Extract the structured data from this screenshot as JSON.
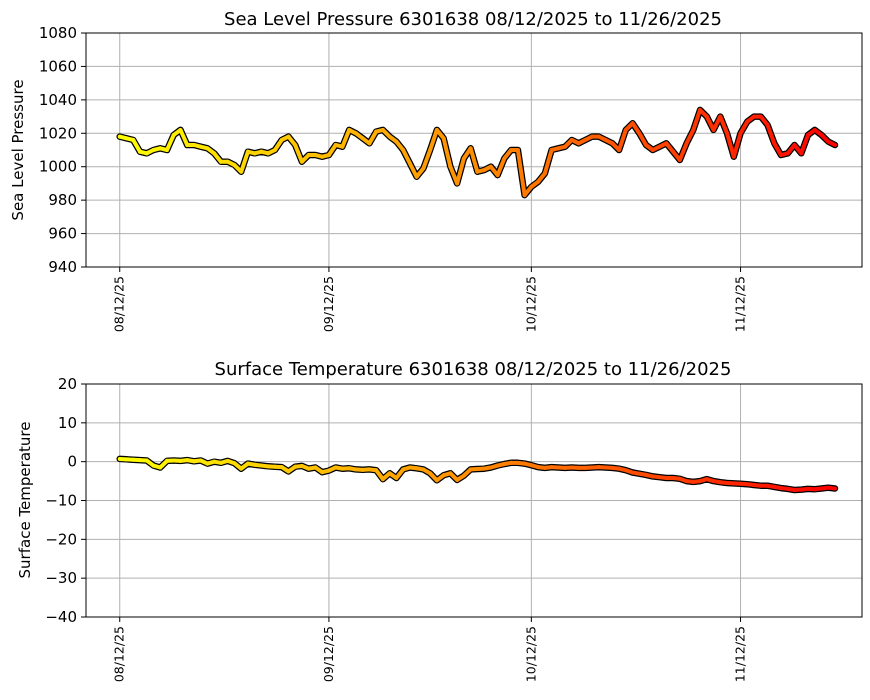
{
  "chart_data": [
    {
      "type": "line",
      "title": "Sea Level Pressure 6301638  08/12/2025 to 11/26/2025",
      "xlabel": "",
      "ylabel": "Sea Level Pressure",
      "ylim": [
        940,
        1080
      ],
      "yticks": [
        940,
        960,
        980,
        1000,
        1020,
        1040,
        1060,
        1080
      ],
      "xlim": [
        "2025-08-07",
        "2025-11-30"
      ],
      "xticks": [
        {
          "date": "2025-08-12",
          "label": "08/12/25"
        },
        {
          "date": "2025-09-12",
          "label": "09/12/25"
        },
        {
          "date": "2025-10-12",
          "label": "10/12/25"
        },
        {
          "date": "2025-11-12",
          "label": "11/12/25"
        }
      ],
      "grid": true,
      "color_scale": [
        "#ffff00",
        "#ff8c00",
        "#ff0000"
      ],
      "edge_color": "#000000",
      "series": [
        {
          "x": [
            "2025-08-12",
            "2025-08-13",
            "2025-08-14",
            "2025-08-15",
            "2025-08-16",
            "2025-08-17",
            "2025-08-18",
            "2025-08-19",
            "2025-08-20",
            "2025-08-21",
            "2025-08-22",
            "2025-08-23",
            "2025-08-24",
            "2025-08-25",
            "2025-08-26",
            "2025-08-27",
            "2025-08-28",
            "2025-08-29",
            "2025-08-30",
            "2025-08-31",
            "2025-09-01",
            "2025-09-02",
            "2025-09-03",
            "2025-09-04",
            "2025-09-05",
            "2025-09-06",
            "2025-09-07",
            "2025-09-08",
            "2025-09-09",
            "2025-09-10",
            "2025-09-11",
            "2025-09-12",
            "2025-09-13",
            "2025-09-14",
            "2025-09-15",
            "2025-09-16",
            "2025-09-17",
            "2025-09-18",
            "2025-09-19",
            "2025-09-20",
            "2025-09-21",
            "2025-09-22",
            "2025-09-23",
            "2025-09-24",
            "2025-09-25",
            "2025-09-26",
            "2025-09-27",
            "2025-09-28",
            "2025-09-29",
            "2025-09-30",
            "2025-10-01",
            "2025-10-02",
            "2025-10-03",
            "2025-10-04",
            "2025-10-05",
            "2025-10-06",
            "2025-10-07",
            "2025-10-08",
            "2025-10-09",
            "2025-10-10",
            "2025-10-11",
            "2025-10-12",
            "2025-10-13",
            "2025-10-14",
            "2025-10-15",
            "2025-10-16",
            "2025-10-17",
            "2025-10-18",
            "2025-10-19",
            "2025-10-20",
            "2025-10-21",
            "2025-10-22",
            "2025-10-23",
            "2025-10-24",
            "2025-10-25",
            "2025-10-26",
            "2025-10-27",
            "2025-10-28",
            "2025-10-29",
            "2025-10-30",
            "2025-10-31",
            "2025-11-01",
            "2025-11-02",
            "2025-11-03",
            "2025-11-04",
            "2025-11-05",
            "2025-11-06",
            "2025-11-07",
            "2025-11-08",
            "2025-11-09",
            "2025-11-10",
            "2025-11-11",
            "2025-11-12",
            "2025-11-13",
            "2025-11-14",
            "2025-11-15",
            "2025-11-16",
            "2025-11-17",
            "2025-11-18",
            "2025-11-19",
            "2025-11-20",
            "2025-11-21",
            "2025-11-22",
            "2025-11-23",
            "2025-11-24",
            "2025-11-25",
            "2025-11-26"
          ],
          "y": [
            1018,
            1017,
            1016,
            1009,
            1008,
            1010,
            1011,
            1010,
            1019,
            1022,
            1013,
            1013,
            1012,
            1011,
            1008,
            1003,
            1003,
            1001,
            997,
            1009,
            1008,
            1009,
            1008,
            1010,
            1016,
            1018,
            1013,
            1003,
            1007,
            1007,
            1006,
            1007,
            1013,
            1012,
            1022,
            1020,
            1017,
            1014,
            1021,
            1022,
            1018,
            1015,
            1010,
            1002,
            994,
            999,
            1010,
            1022,
            1017,
            1000,
            990,
            1005,
            1011,
            997,
            998,
            1000,
            995,
            1005,
            1010,
            1010,
            983,
            988,
            991,
            996,
            1010,
            1011,
            1012,
            1016,
            1014,
            1016,
            1018,
            1018,
            1016,
            1014,
            1010,
            1022,
            1026,
            1020,
            1013,
            1010,
            1012,
            1014,
            1009,
            1004,
            1014,
            1022,
            1034,
            1030,
            1022,
            1030,
            1020,
            1006,
            1020,
            1027,
            1030,
            1030,
            1025,
            1014,
            1007,
            1008,
            1013,
            1008,
            1019,
            1022,
            1019,
            1015,
            1013
          ]
        }
      ]
    },
    {
      "type": "line",
      "title": "Surface Temperature 6301638  08/12/2025 to 11/26/2025",
      "xlabel": "",
      "ylabel": "Surface Temperature",
      "ylim": [
        -40,
        20
      ],
      "yticks": [
        -40,
        -30,
        -20,
        -10,
        0,
        10,
        20
      ],
      "xlim": [
        "2025-08-07",
        "2025-11-30"
      ],
      "xticks": [
        {
          "date": "2025-08-12",
          "label": "08/12/25"
        },
        {
          "date": "2025-09-12",
          "label": "09/12/25"
        },
        {
          "date": "2025-10-12",
          "label": "10/12/25"
        },
        {
          "date": "2025-11-12",
          "label": "11/12/25"
        }
      ],
      "grid": true,
      "color_scale": [
        "#ffff00",
        "#ff8c00",
        "#ff0000"
      ],
      "edge_color": "#000000",
      "series": [
        {
          "x": [
            "2025-08-12",
            "2025-08-13",
            "2025-08-14",
            "2025-08-15",
            "2025-08-16",
            "2025-08-17",
            "2025-08-18",
            "2025-08-19",
            "2025-08-20",
            "2025-08-21",
            "2025-08-22",
            "2025-08-23",
            "2025-08-24",
            "2025-08-25",
            "2025-08-26",
            "2025-08-27",
            "2025-08-28",
            "2025-08-29",
            "2025-08-30",
            "2025-08-31",
            "2025-09-01",
            "2025-09-02",
            "2025-09-03",
            "2025-09-04",
            "2025-09-05",
            "2025-09-06",
            "2025-09-07",
            "2025-09-08",
            "2025-09-09",
            "2025-09-10",
            "2025-09-11",
            "2025-09-12",
            "2025-09-13",
            "2025-09-14",
            "2025-09-15",
            "2025-09-16",
            "2025-09-17",
            "2025-09-18",
            "2025-09-19",
            "2025-09-20",
            "2025-09-21",
            "2025-09-22",
            "2025-09-23",
            "2025-09-24",
            "2025-09-25",
            "2025-09-26",
            "2025-09-27",
            "2025-09-28",
            "2025-09-29",
            "2025-09-30",
            "2025-10-01",
            "2025-10-02",
            "2025-10-03",
            "2025-10-04",
            "2025-10-05",
            "2025-10-06",
            "2025-10-07",
            "2025-10-08",
            "2025-10-09",
            "2025-10-10",
            "2025-10-11",
            "2025-10-12",
            "2025-10-13",
            "2025-10-14",
            "2025-10-15",
            "2025-10-16",
            "2025-10-17",
            "2025-10-18",
            "2025-10-19",
            "2025-10-20",
            "2025-10-21",
            "2025-10-22",
            "2025-10-23",
            "2025-10-24",
            "2025-10-25",
            "2025-10-26",
            "2025-10-27",
            "2025-10-28",
            "2025-10-29",
            "2025-10-30",
            "2025-10-31",
            "2025-11-01",
            "2025-11-02",
            "2025-11-03",
            "2025-11-04",
            "2025-11-05",
            "2025-11-06",
            "2025-11-07",
            "2025-11-08",
            "2025-11-09",
            "2025-11-10",
            "2025-11-11",
            "2025-11-12",
            "2025-11-13",
            "2025-11-14",
            "2025-11-15",
            "2025-11-16",
            "2025-11-17",
            "2025-11-18",
            "2025-11-19",
            "2025-11-20",
            "2025-11-21",
            "2025-11-22",
            "2025-11-23",
            "2025-11-24",
            "2025-11-25",
            "2025-11-26"
          ],
          "y": [
            0.7,
            0.6,
            0.5,
            0.4,
            0.3,
            -1.0,
            -1.5,
            0.2,
            0.3,
            0.2,
            0.4,
            0.1,
            0.3,
            -0.5,
            0.0,
            -0.3,
            0.2,
            -0.4,
            -1.8,
            -0.5,
            -0.8,
            -1.0,
            -1.2,
            -1.3,
            -1.4,
            -2.5,
            -1.3,
            -1.1,
            -1.8,
            -1.5,
            -2.7,
            -2.3,
            -1.5,
            -1.8,
            -1.7,
            -2.0,
            -2.1,
            -2.0,
            -2.2,
            -4.5,
            -3.0,
            -4.2,
            -2.0,
            -1.5,
            -1.7,
            -2.0,
            -3.0,
            -4.8,
            -3.5,
            -3.0,
            -4.7,
            -3.6,
            -2.0,
            -1.9,
            -1.8,
            -1.5,
            -1.0,
            -0.6,
            -0.3,
            -0.3,
            -0.5,
            -0.9,
            -1.4,
            -1.6,
            -1.4,
            -1.5,
            -1.6,
            -1.5,
            -1.6,
            -1.6,
            -1.5,
            -1.4,
            -1.5,
            -1.6,
            -1.8,
            -2.2,
            -2.8,
            -3.1,
            -3.4,
            -3.8,
            -4.0,
            -4.2,
            -4.2,
            -4.4,
            -5.0,
            -5.2,
            -5.0,
            -4.5,
            -5.0,
            -5.3,
            -5.5,
            -5.6,
            -5.7,
            -5.8,
            -6.0,
            -6.2,
            -6.2,
            -6.5,
            -6.8,
            -7.0,
            -7.3,
            -7.2,
            -7.0,
            -7.1,
            -6.9,
            -6.7,
            -6.9
          ]
        }
      ]
    }
  ]
}
